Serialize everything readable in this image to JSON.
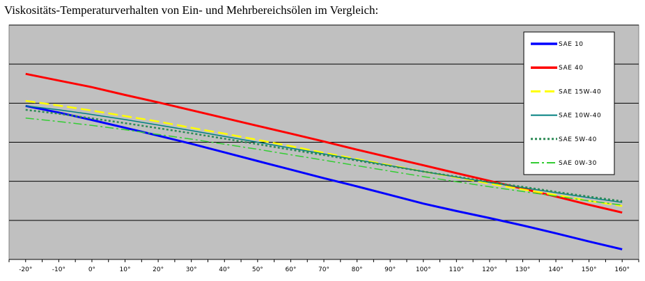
{
  "chart_data": {
    "type": "line",
    "title": "Viskositäts-Temperaturverhalten von Ein- und Mehrbereichsölen im Vergleich:",
    "xlabel": "",
    "ylabel": "",
    "x": [
      -20,
      -10,
      0,
      10,
      20,
      30,
      40,
      50,
      60,
      70,
      80,
      90,
      100,
      110,
      120,
      130,
      140,
      150,
      160
    ],
    "x_tick_labels": [
      "-20°",
      "-10°",
      "0°",
      "10°",
      "20°",
      "30°",
      "40°",
      "50°",
      "60°",
      "70°",
      "80°",
      "90°",
      "100°",
      "110°",
      "120°",
      "130°",
      "140°",
      "150°",
      "160°"
    ],
    "xlim": [
      -25,
      165
    ],
    "ylim": [
      0,
      6
    ],
    "y_gridlines": [
      1,
      2,
      3,
      4,
      5,
      6
    ],
    "grid": true,
    "legend_position": "top-right",
    "background": "#c0c0c0",
    "series": [
      {
        "name": "SAE 10",
        "color": "#0000ff",
        "dash": "solid",
        "width": 3,
        "values": [
          3.93,
          3.76,
          3.57,
          3.37,
          3.17,
          2.96,
          2.74,
          2.52,
          2.3,
          2.08,
          1.87,
          1.65,
          1.43,
          1.24,
          1.06,
          0.87,
          0.67,
          0.46,
          0.26
        ]
      },
      {
        "name": "SAE 40",
        "color": "#ff0000",
        "dash": "solid",
        "width": 3,
        "values": [
          4.75,
          4.58,
          4.41,
          4.21,
          4.02,
          3.82,
          3.62,
          3.42,
          3.22,
          3.02,
          2.81,
          2.61,
          2.41,
          2.21,
          2.01,
          1.81,
          1.61,
          1.4,
          1.2
        ]
      },
      {
        "name": "SAE 15W-40",
        "color": "#ffff00",
        "dash": "long-dash",
        "width": 2.5,
        "values": [
          4.06,
          3.94,
          3.81,
          3.67,
          3.53,
          3.37,
          3.22,
          3.06,
          2.9,
          2.73,
          2.57,
          2.41,
          2.25,
          2.1,
          1.94,
          1.79,
          1.65,
          1.5,
          1.37
        ]
      },
      {
        "name": "SAE 10W-40",
        "color": "#008080",
        "dash": "solid",
        "width": 1.5,
        "values": [
          3.93,
          3.83,
          3.71,
          3.58,
          3.44,
          3.3,
          3.15,
          3.0,
          2.85,
          2.7,
          2.55,
          2.4,
          2.25,
          2.11,
          1.97,
          1.84,
          1.71,
          1.58,
          1.46
        ]
      },
      {
        "name": "SAE 5W-40",
        "color": "#2e8b57",
        "dash": "dotted",
        "width": 2.5,
        "values": [
          3.83,
          3.73,
          3.61,
          3.49,
          3.36,
          3.23,
          3.09,
          2.95,
          2.81,
          2.67,
          2.53,
          2.39,
          2.25,
          2.12,
          1.98,
          1.86,
          1.73,
          1.61,
          1.49
        ]
      },
      {
        "name": "SAE 0W-30",
        "color": "#33cc33",
        "dash": "dash-dot",
        "width": 1.5,
        "values": [
          3.62,
          3.53,
          3.43,
          3.32,
          3.2,
          3.08,
          2.95,
          2.82,
          2.68,
          2.54,
          2.4,
          2.26,
          2.12,
          1.99,
          1.86,
          1.74,
          1.62,
          1.5,
          1.39
        ]
      }
    ]
  }
}
